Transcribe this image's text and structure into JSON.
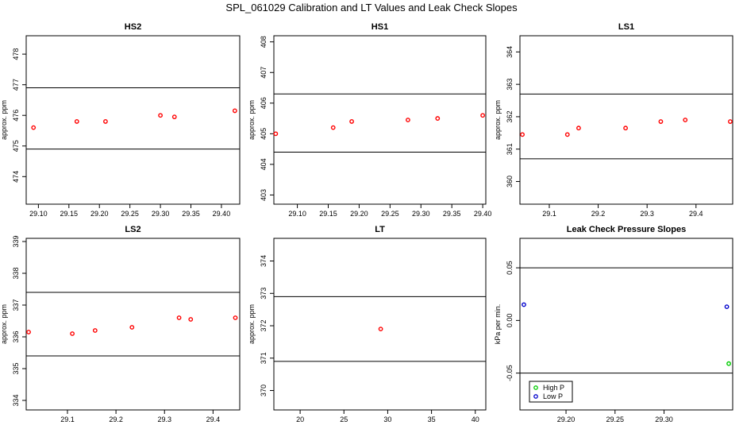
{
  "figure": {
    "title": "SPL_061029  Calibration and LT Values and Leak Check Slopes"
  },
  "chart_data": [
    {
      "type": "scatter",
      "title": "HS2",
      "ylabel": "approx. ppm",
      "xlim": [
        29.08,
        29.43
      ],
      "ylim": [
        473.1,
        478.6
      ],
      "xticks": [
        "29.10",
        "29.15",
        "29.20",
        "29.25",
        "29.30",
        "29.35",
        "29.40"
      ],
      "yticks": [
        "474",
        "475",
        "476",
        "477",
        "478"
      ],
      "hlines": [
        474.9,
        476.9
      ],
      "series": [
        {
          "color": "#ff0000",
          "x": [
            29.092,
            29.163,
            29.21,
            29.3,
            29.323,
            29.422
          ],
          "y": [
            475.6,
            475.8,
            475.8,
            476.0,
            475.95,
            476.15
          ]
        }
      ]
    },
    {
      "type": "scatter",
      "title": "HS1",
      "ylabel": "approx. ppm",
      "xlim": [
        29.062,
        29.405
      ],
      "ylim": [
        402.7,
        408.2
      ],
      "xticks": [
        "29.10",
        "29.15",
        "29.20",
        "29.25",
        "29.30",
        "29.35",
        "29.40"
      ],
      "yticks": [
        "403",
        "404",
        "405",
        "406",
        "407",
        "408"
      ],
      "hlines": [
        404.4,
        406.3
      ],
      "series": [
        {
          "color": "#ff0000",
          "x": [
            29.065,
            29.158,
            29.188,
            29.279,
            29.327,
            29.4
          ],
          "y": [
            405.0,
            405.2,
            405.4,
            405.45,
            405.5,
            405.6
          ]
        }
      ]
    },
    {
      "type": "scatter",
      "title": "LS1",
      "ylabel": "approx. ppm",
      "xlim": [
        29.04,
        29.475
      ],
      "ylim": [
        359.3,
        364.5
      ],
      "xticks": [
        "29.1",
        "29.2",
        "29.3",
        "29.4"
      ],
      "yticks": [
        "360",
        "361",
        "362",
        "363",
        "364"
      ],
      "hlines": [
        360.7,
        362.7
      ],
      "series": [
        {
          "color": "#ff0000",
          "x": [
            29.045,
            29.137,
            29.16,
            29.256,
            29.328,
            29.378,
            29.47
          ],
          "y": [
            361.45,
            361.45,
            361.65,
            361.65,
            361.85,
            361.9,
            361.85
          ]
        }
      ]
    },
    {
      "type": "scatter",
      "title": "LS2",
      "ylabel": "approx. ppm",
      "xlim": [
        29.015,
        29.455
      ],
      "ylim": [
        333.7,
        339.1
      ],
      "xticks": [
        "29.1",
        "29.2",
        "29.3",
        "29.4"
      ],
      "yticks": [
        "334",
        "335",
        "336",
        "337",
        "338",
        "339"
      ],
      "hlines": [
        335.4,
        337.4
      ],
      "series": [
        {
          "color": "#ff0000",
          "x": [
            29.02,
            29.11,
            29.157,
            29.233,
            29.33,
            29.354,
            29.446
          ],
          "y": [
            336.15,
            336.1,
            336.2,
            336.3,
            336.6,
            336.55,
            336.6
          ]
        }
      ]
    },
    {
      "type": "scatter",
      "title": "LT",
      "ylabel": "approx. ppm",
      "xlim": [
        17.0,
        41.2
      ],
      "ylim": [
        369.4,
        374.7
      ],
      "xticks": [
        "20",
        "25",
        "30",
        "35",
        "40"
      ],
      "yticks": [
        "370",
        "371",
        "372",
        "373",
        "374"
      ],
      "hlines": [
        370.9,
        372.9
      ],
      "series": [
        {
          "color": "#ff0000",
          "x": [
            29.2
          ],
          "y": [
            371.9
          ]
        }
      ]
    },
    {
      "type": "scatter",
      "title": "Leak Check Pressure Slopes",
      "ylabel": "kPa per min.",
      "xlim": [
        29.153,
        29.37
      ],
      "ylim": [
        -0.085,
        0.078
      ],
      "xticks": [
        "29.20",
        "29.25",
        "29.30"
      ],
      "yticks": [
        "-0.05",
        "0.00",
        "0.05"
      ],
      "hlines": [
        0.05,
        -0.05
      ],
      "legend": {
        "position": "bottom-left"
      },
      "series": [
        {
          "name": "High P",
          "color": "#00cc00",
          "x": [
            29.366
          ],
          "y": [
            -0.041
          ]
        },
        {
          "name": "Low P",
          "color": "#0000cc",
          "x": [
            29.157,
            29.364
          ],
          "y": [
            0.015,
            0.013
          ]
        }
      ]
    }
  ]
}
